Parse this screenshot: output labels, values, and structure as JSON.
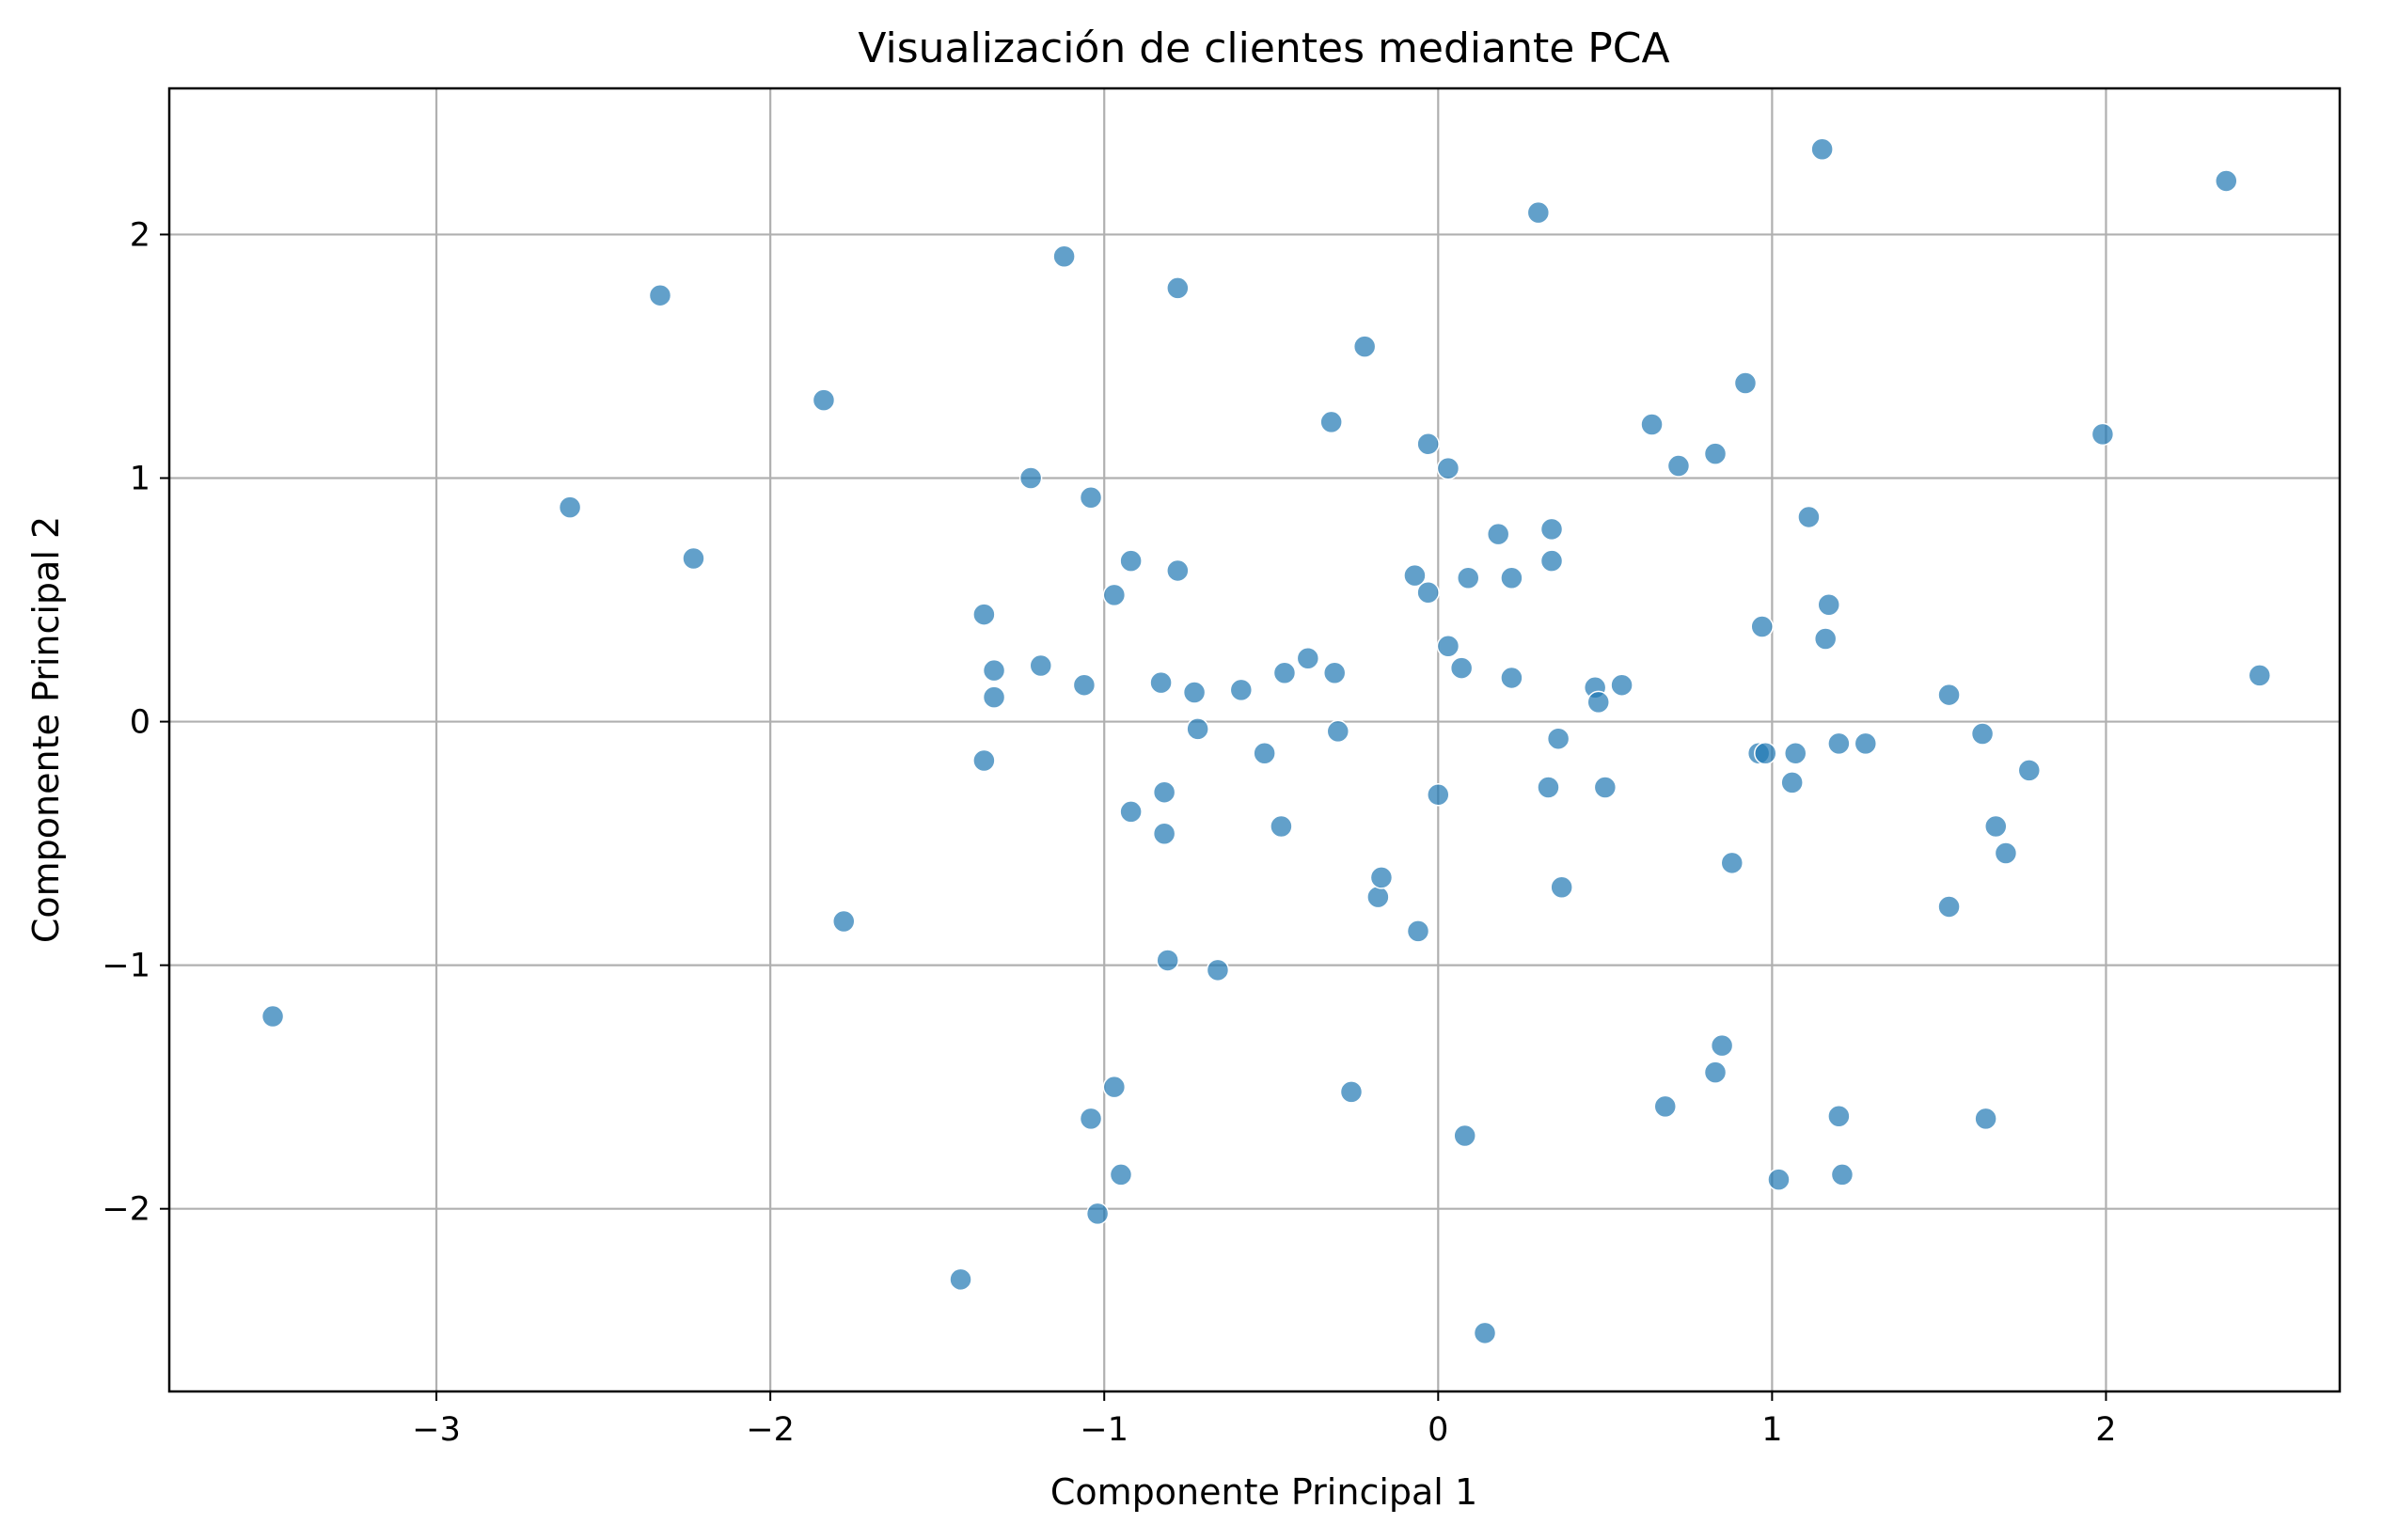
{
  "chart_data": {
    "type": "scatter",
    "title": "Visualización de clientes mediante PCA",
    "xlabel": "Componente Principal 1",
    "ylabel": "Componente Principal 2",
    "xlim": [
      -3.8,
      2.7
    ],
    "ylim": [
      -2.75,
      2.6
    ],
    "xticks": [
      -3,
      -2,
      -1,
      0,
      1,
      2
    ],
    "yticks": [
      -2,
      -1,
      0,
      1,
      2
    ],
    "xtick_labels": [
      "−3",
      "−2",
      "−1",
      "0",
      "1",
      "2"
    ],
    "ytick_labels": [
      "−2",
      "−1",
      "0",
      "1",
      "2"
    ],
    "grid": true,
    "point_color": "#1f77b4",
    "point_alpha": 0.7,
    "points": [
      {
        "x": -3.49,
        "y": -1.21
      },
      {
        "x": -2.6,
        "y": 0.88
      },
      {
        "x": -2.33,
        "y": 1.75
      },
      {
        "x": -2.23,
        "y": 0.67
      },
      {
        "x": -1.84,
        "y": 1.32
      },
      {
        "x": -1.78,
        "y": -0.82
      },
      {
        "x": -1.43,
        "y": -2.29
      },
      {
        "x": -1.36,
        "y": 0.44
      },
      {
        "x": -1.36,
        "y": -0.16
      },
      {
        "x": -1.33,
        "y": 0.21
      },
      {
        "x": -1.33,
        "y": 0.1
      },
      {
        "x": -1.22,
        "y": 1.0
      },
      {
        "x": -1.19,
        "y": 0.23
      },
      {
        "x": -1.12,
        "y": 1.91
      },
      {
        "x": -1.06,
        "y": 0.15
      },
      {
        "x": -1.04,
        "y": 0.92
      },
      {
        "x": -1.04,
        "y": -1.63
      },
      {
        "x": -1.02,
        "y": -2.02
      },
      {
        "x": -0.97,
        "y": 0.52
      },
      {
        "x": -0.97,
        "y": -1.5
      },
      {
        "x": -0.95,
        "y": -1.86
      },
      {
        "x": -0.92,
        "y": 0.66
      },
      {
        "x": -0.92,
        "y": -0.37
      },
      {
        "x": -0.83,
        "y": 0.16
      },
      {
        "x": -0.82,
        "y": -0.29
      },
      {
        "x": -0.82,
        "y": -0.46
      },
      {
        "x": -0.81,
        "y": -0.98
      },
      {
        "x": -0.78,
        "y": 1.78
      },
      {
        "x": -0.78,
        "y": 0.62
      },
      {
        "x": -0.73,
        "y": 0.12
      },
      {
        "x": -0.72,
        "y": -0.03
      },
      {
        "x": -0.66,
        "y": -1.02
      },
      {
        "x": -0.59,
        "y": 0.13
      },
      {
        "x": -0.52,
        "y": -0.13
      },
      {
        "x": -0.47,
        "y": -0.43
      },
      {
        "x": -0.46,
        "y": 0.2
      },
      {
        "x": -0.39,
        "y": 0.26
      },
      {
        "x": -0.32,
        "y": 1.23
      },
      {
        "x": -0.31,
        "y": 0.2
      },
      {
        "x": -0.3,
        "y": -0.04
      },
      {
        "x": -0.26,
        "y": -1.52
      },
      {
        "x": -0.22,
        "y": 1.54
      },
      {
        "x": -0.18,
        "y": -0.72
      },
      {
        "x": -0.17,
        "y": -0.64
      },
      {
        "x": -0.07,
        "y": 0.6
      },
      {
        "x": -0.06,
        "y": -0.86
      },
      {
        "x": -0.03,
        "y": 1.14
      },
      {
        "x": -0.03,
        "y": 0.53
      },
      {
        "x": 0.0,
        "y": -0.3
      },
      {
        "x": 0.03,
        "y": 1.04
      },
      {
        "x": 0.03,
        "y": 0.31
      },
      {
        "x": 0.07,
        "y": 0.22
      },
      {
        "x": 0.08,
        "y": -1.7
      },
      {
        "x": 0.09,
        "y": 0.59
      },
      {
        "x": 0.14,
        "y": -2.51
      },
      {
        "x": 0.18,
        "y": 0.77
      },
      {
        "x": 0.22,
        "y": 0.59
      },
      {
        "x": 0.22,
        "y": 0.18
      },
      {
        "x": 0.3,
        "y": 2.09
      },
      {
        "x": 0.33,
        "y": -0.27
      },
      {
        "x": 0.34,
        "y": 0.79
      },
      {
        "x": 0.34,
        "y": 0.66
      },
      {
        "x": 0.36,
        "y": -0.07
      },
      {
        "x": 0.37,
        "y": -0.68
      },
      {
        "x": 0.47,
        "y": 0.14
      },
      {
        "x": 0.48,
        "y": 0.08
      },
      {
        "x": 0.5,
        "y": -0.27
      },
      {
        "x": 0.55,
        "y": 0.15
      },
      {
        "x": 0.64,
        "y": 1.22
      },
      {
        "x": 0.68,
        "y": -1.58
      },
      {
        "x": 0.72,
        "y": 1.05
      },
      {
        "x": 0.83,
        "y": 1.1
      },
      {
        "x": 0.83,
        "y": -1.44
      },
      {
        "x": 0.85,
        "y": -1.33
      },
      {
        "x": 0.88,
        "y": -0.58
      },
      {
        "x": 0.92,
        "y": 1.39
      },
      {
        "x": 0.96,
        "y": -0.13
      },
      {
        "x": 0.97,
        "y": 0.39
      },
      {
        "x": 0.98,
        "y": -0.13
      },
      {
        "x": 1.02,
        "y": -1.88
      },
      {
        "x": 1.06,
        "y": -0.25
      },
      {
        "x": 1.07,
        "y": -0.13
      },
      {
        "x": 1.11,
        "y": 0.84
      },
      {
        "x": 1.15,
        "y": 2.35
      },
      {
        "x": 1.16,
        "y": 0.34
      },
      {
        "x": 1.17,
        "y": 0.48
      },
      {
        "x": 1.2,
        "y": -0.09
      },
      {
        "x": 1.2,
        "y": -1.62
      },
      {
        "x": 1.21,
        "y": -1.86
      },
      {
        "x": 1.28,
        "y": -0.09
      },
      {
        "x": 1.53,
        "y": 0.11
      },
      {
        "x": 1.53,
        "y": -0.76
      },
      {
        "x": 1.63,
        "y": -0.05
      },
      {
        "x": 1.64,
        "y": -1.63
      },
      {
        "x": 1.67,
        "y": -0.43
      },
      {
        "x": 1.7,
        "y": -0.54
      },
      {
        "x": 1.77,
        "y": -0.2
      },
      {
        "x": 1.99,
        "y": 1.18
      },
      {
        "x": 2.36,
        "y": 2.22
      },
      {
        "x": 2.46,
        "y": 0.19
      }
    ]
  }
}
